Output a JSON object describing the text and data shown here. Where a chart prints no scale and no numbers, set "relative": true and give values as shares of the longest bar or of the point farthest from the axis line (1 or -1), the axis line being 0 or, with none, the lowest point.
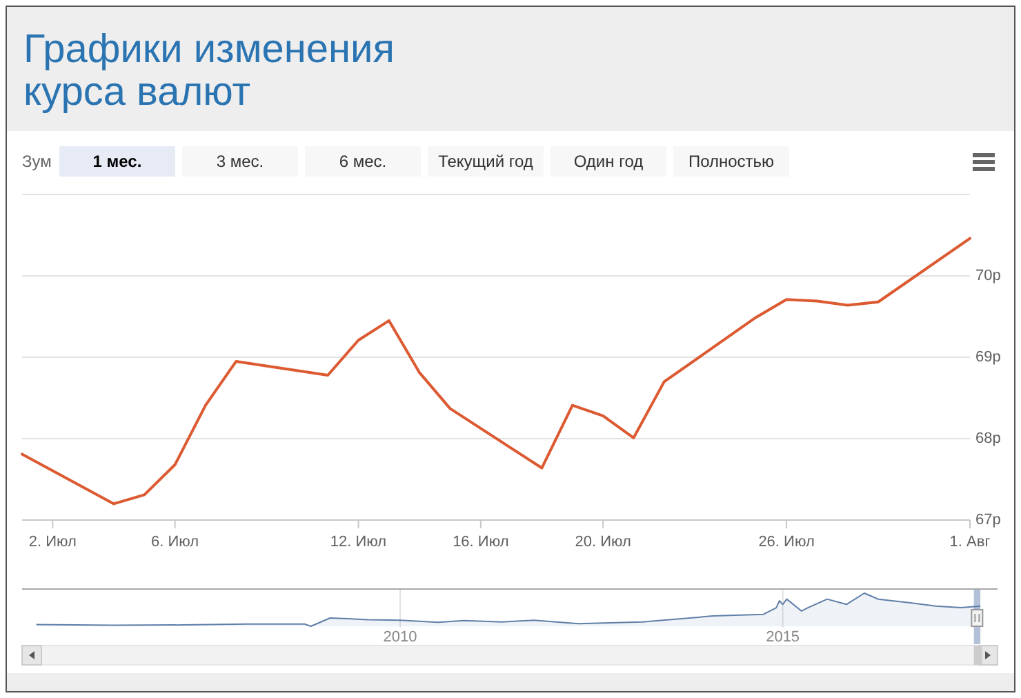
{
  "chart_data": [
    {
      "type": "line",
      "title": "Графики изменения курса валют",
      "annotations": [
        "Зум",
        "1 мес.",
        "3 мес.",
        "6 мес.",
        "Текущий год",
        "Один год",
        "Полностью"
      ],
      "x": [
        "--07-01",
        "--07-04",
        "--07-05",
        "--07-06",
        "--07-07",
        "--07-08",
        "--07-11",
        "--07-12",
        "--07-13",
        "--07-14",
        "--07-15",
        "--07-18",
        "--07-19",
        "--07-20",
        "--07-21",
        "--07-22",
        "--07-25",
        "--07-26",
        "--07-27",
        "--07-28",
        "--07-29",
        "--08-01"
      ],
      "values": [
        67.81,
        67.2,
        67.31,
        67.68,
        68.41,
        68.95,
        68.78,
        69.21,
        69.45,
        68.81,
        68.37,
        67.64,
        68.41,
        68.28,
        68.01,
        68.7,
        69.49,
        69.71,
        69.69,
        69.64,
        69.68,
        70.46
      ],
      "color": "#dc5a32",
      "xlim": [
        "--07-01",
        "--08-01"
      ],
      "xticks": [
        {
          "value": "--07-02",
          "label": "2. Июл"
        },
        {
          "value": "--07-06",
          "label": "6. Июл"
        },
        {
          "value": "--07-12",
          "label": "12. Июл"
        },
        {
          "value": "--07-16",
          "label": "16. Июл"
        },
        {
          "value": "--07-20",
          "label": "20. Июл"
        },
        {
          "value": "--07-26",
          "label": "26. Июл"
        },
        {
          "value": "--08-01",
          "label": "1. Авг"
        }
      ],
      "ylim": [
        67,
        71
      ],
      "yticks": [
        {
          "value": 67,
          "label": "67р"
        },
        {
          "value": 68,
          "label": "68р"
        },
        {
          "value": 69,
          "label": "69р"
        },
        {
          "value": 70,
          "label": "70р"
        },
        {
          "value": 71,
          "label": null
        }
      ],
      "grid": "y"
    },
    {
      "type": "area",
      "relative": true,
      "x": [
        "2005-04",
        "2006-04",
        "2007-03",
        "2008-01",
        "2008-10",
        "2008-11",
        "2009-02",
        "2009-08",
        "2010-01",
        "2010-07",
        "2010-11",
        "2011-05",
        "2011-10",
        "2012-05",
        "2013-03",
        "2014-02",
        "2014-10",
        "2014-12-01",
        "2014-12-16",
        "2015-01-01",
        "2015-01-20",
        "2015-04",
        "2015-05",
        "2015-08",
        "2015-11",
        "2016-01-25",
        "2016-04",
        "2016-09",
        "2017-01",
        "2017-05",
        "2017-08-01"
      ],
      "values": [
        0.05,
        0.03,
        0.04,
        0.07,
        0.07,
        0,
        0.25,
        0.2,
        0.18,
        0.12,
        0.17,
        0.13,
        0.18,
        0.08,
        0.13,
        0.31,
        0.36,
        0.56,
        0.77,
        0.66,
        0.82,
        0.46,
        0.56,
        0.82,
        0.66,
        1,
        0.82,
        0.71,
        0.61,
        0.56,
        0.61
      ],
      "color": "#5f7fa8",
      "xlim": [
        "2005-01-23",
        "2017-10-22"
      ],
      "xticks": [
        {
          "value": "2010",
          "label": "2010"
        },
        {
          "value": "2015",
          "label": "2015"
        }
      ],
      "tick_labels": "x",
      "grid": "x",
      "bands": [
        {
          "axis": "x",
          "from": "2017-07-01",
          "to": "2017-08-01",
          "color": "#b2c0d8"
        }
      ]
    }
  ]
}
